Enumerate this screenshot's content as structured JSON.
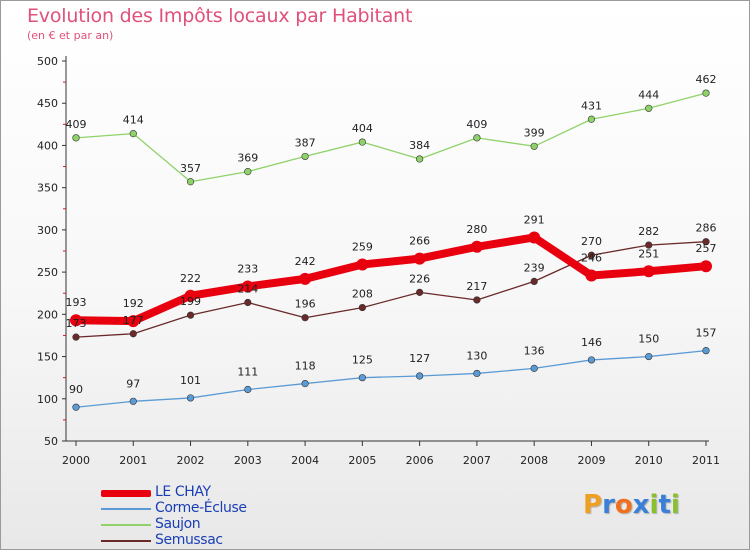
{
  "title": "Evolution des Impôts locaux par Habitant",
  "subtitle": "(en € et par an)",
  "logo": {
    "text": "Proxiti",
    "letters": [
      "P",
      "r",
      "o",
      "x",
      "i",
      "t",
      "i"
    ],
    "colors": [
      "#f0a020",
      "#3a7fd8",
      "#f07020",
      "#3a7fd8",
      "#8ac030",
      "#3a7fd8",
      "#8ac030"
    ]
  },
  "chart_data": {
    "type": "line",
    "title": "Evolution des Impôts locaux par Habitant",
    "subtitle": "(en € et par an)",
    "x": [
      "2000",
      "2001",
      "2002",
      "2003",
      "2004",
      "2005",
      "2006",
      "2007",
      "2008",
      "2009",
      "2010",
      "2011"
    ],
    "ylim": [
      50,
      500
    ],
    "yticks": [
      "50",
      "100",
      "150",
      "200",
      "250",
      "300",
      "350",
      "400",
      "450",
      "500"
    ],
    "grid": false,
    "legend_position": "bottom-left",
    "series": [
      {
        "name": "LE CHAY",
        "color": "#e8000e",
        "emphasis": true,
        "values": [
          193,
          192,
          222,
          233,
          242,
          259,
          266,
          280,
          291,
          246,
          251,
          257
        ]
      },
      {
        "name": "Corme-Écluse",
        "color": "#5b9bd5",
        "values": [
          90,
          97,
          101,
          111,
          118,
          125,
          127,
          130,
          136,
          146,
          150,
          157
        ]
      },
      {
        "name": "Saujon",
        "color": "#8fd26a",
        "values": [
          409,
          414,
          357,
          369,
          387,
          404,
          384,
          409,
          399,
          431,
          444,
          462
        ]
      },
      {
        "name": "Semussac",
        "color": "#6b2a2a",
        "values": [
          173,
          177,
          199,
          214,
          196,
          208,
          226,
          217,
          239,
          270,
          282,
          286
        ]
      }
    ]
  }
}
